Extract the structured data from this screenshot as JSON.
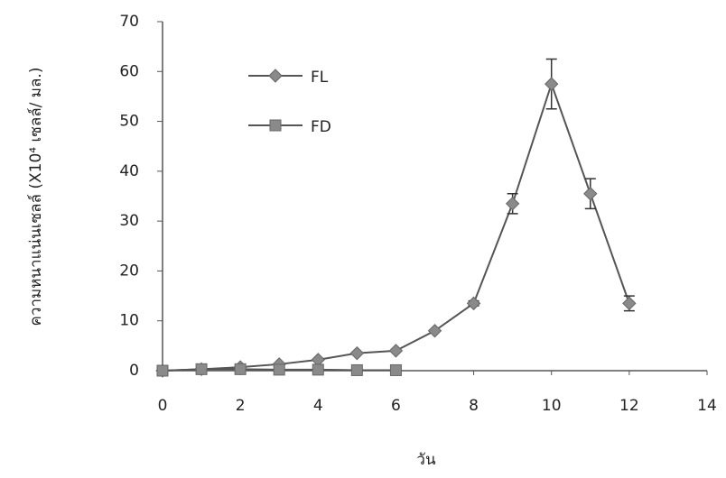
{
  "chart_data": {
    "type": "line",
    "x_label": "วัน",
    "y_label": "ความหนาแน่นเซลล์ (X10⁴ เซลล์/ มล.)",
    "xlim": [
      0,
      14
    ],
    "xticks": [
      0,
      2,
      4,
      6,
      8,
      10,
      12,
      14
    ],
    "ylim": [
      0,
      70
    ],
    "yticks": [
      0,
      10,
      20,
      30,
      40,
      50,
      60,
      70
    ],
    "series": [
      {
        "name": "FL",
        "color": "#8a8a8a",
        "marker": "diamond",
        "x": [
          0,
          1,
          2,
          3,
          4,
          5,
          6,
          7,
          8,
          9,
          10,
          11,
          12
        ],
        "values": [
          0,
          0.3,
          0.7,
          1.3,
          2.2,
          3.5,
          4,
          8,
          13.5,
          33.5,
          57.5,
          35.5,
          13.5
        ],
        "errors": [
          null,
          null,
          null,
          null,
          null,
          null,
          null,
          null,
          0.5,
          2,
          5,
          3,
          1.5
        ]
      },
      {
        "name": "FD",
        "color": "#8a8a8a",
        "marker": "square",
        "x": [
          0,
          1,
          2,
          3,
          4,
          5,
          6
        ],
        "values": [
          0,
          0.3,
          0.3,
          0.2,
          0.2,
          0.1,
          0.1
        ],
        "errors": [
          null,
          null,
          null,
          null,
          null,
          null,
          null
        ]
      }
    ]
  }
}
